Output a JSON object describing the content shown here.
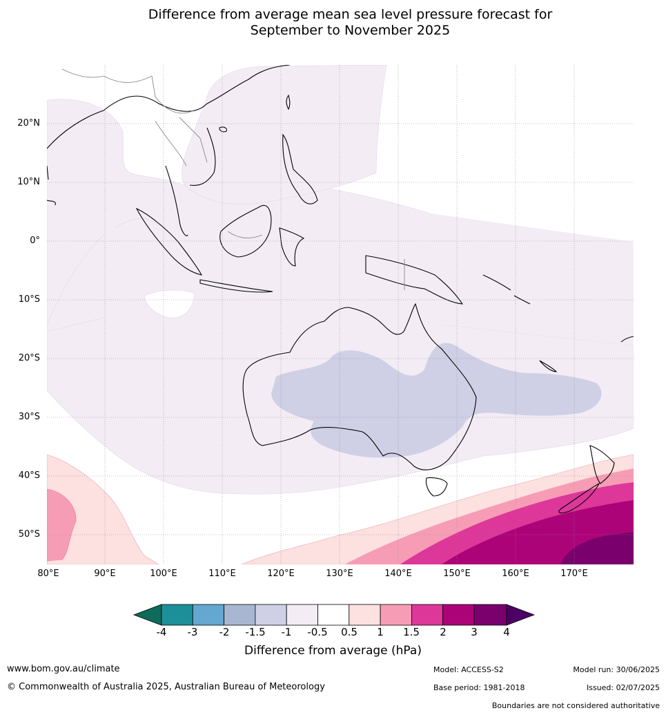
{
  "title_line1": "Difference from average mean sea level pressure forecast for",
  "title_line2": "September to November 2025",
  "lat_labels": [
    "20°N",
    "10°N",
    "0°",
    "10°S",
    "20°S",
    "30°S",
    "40°S",
    "50°S"
  ],
  "lon_labels": [
    "80°E",
    "90°E",
    "100°E",
    "110°E",
    "120°E",
    "130°E",
    "140°E",
    "150°E",
    "160°E",
    "170°E"
  ],
  "colorbar": {
    "title": "Difference from average (hPa)",
    "ticks": [
      "-4",
      "-3",
      "-2",
      "-1.5",
      "-1",
      "-0.5",
      "0.5",
      "1",
      "1.5",
      "2",
      "3",
      "4"
    ],
    "colors": [
      "#0f6b5a",
      "#1c8f99",
      "#64a7d0",
      "#a8b6d2",
      "#cfd0e5",
      "#f3ecf5",
      "#ffffff",
      "#fde0e0",
      "#f69db5",
      "#dc3799",
      "#ad0379",
      "#79006d",
      "#4c0063"
    ]
  },
  "footer": {
    "url": "www.bom.gov.au/climate",
    "copyright": "© Commonwealth of Australia 2025, Australian Bureau of Meteorology",
    "model": "Model: ACCESS-S2",
    "model_run": "Model run: 30/06/2025",
    "base_period": "Base period: 1981-2018",
    "issued": "Issued: 02/07/2025",
    "disclaimer": "Boundaries are not considered authoritative"
  }
}
